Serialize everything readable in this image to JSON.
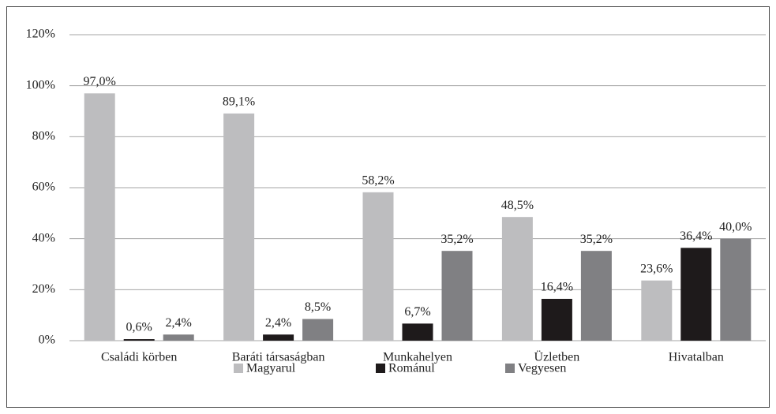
{
  "chart_data": {
    "type": "bar",
    "categories": [
      "Családi körben",
      "Baráti társaságban",
      "Munkahelyen",
      "Üzletben",
      "Hivatalban"
    ],
    "series": [
      {
        "name": "Magyarul",
        "color": "#bdbdbf",
        "values": [
          97.0,
          89.1,
          58.2,
          48.5,
          23.6
        ],
        "value_labels": [
          "97,0%",
          "89,1%",
          "58,2%",
          "48,5%",
          "23,6%"
        ]
      },
      {
        "name": "Románul",
        "color": "#1e1a1b",
        "values": [
          0.6,
          2.4,
          6.7,
          16.4,
          36.4
        ],
        "value_labels": [
          "0,6%",
          "2,4%",
          "6,7%",
          "16,4%",
          "36,4%"
        ]
      },
      {
        "name": "Vegyesen",
        "color": "#808083",
        "values": [
          2.4,
          8.5,
          35.2,
          35.2,
          40.0
        ],
        "value_labels": [
          "2,4%",
          "8,5%",
          "35,2%",
          "35,2%",
          "40,0%"
        ]
      }
    ],
    "ylim": [
      0,
      120
    ],
    "yticks": [
      {
        "value": 0,
        "label": "0%"
      },
      {
        "value": 20,
        "label": "20%"
      },
      {
        "value": 40,
        "label": "40%"
      },
      {
        "value": 60,
        "label": "60%"
      },
      {
        "value": 80,
        "label": "80%"
      },
      {
        "value": 100,
        "label": "100%"
      },
      {
        "value": 120,
        "label": "120%"
      }
    ],
    "grid": true,
    "legend": "bottom"
  }
}
